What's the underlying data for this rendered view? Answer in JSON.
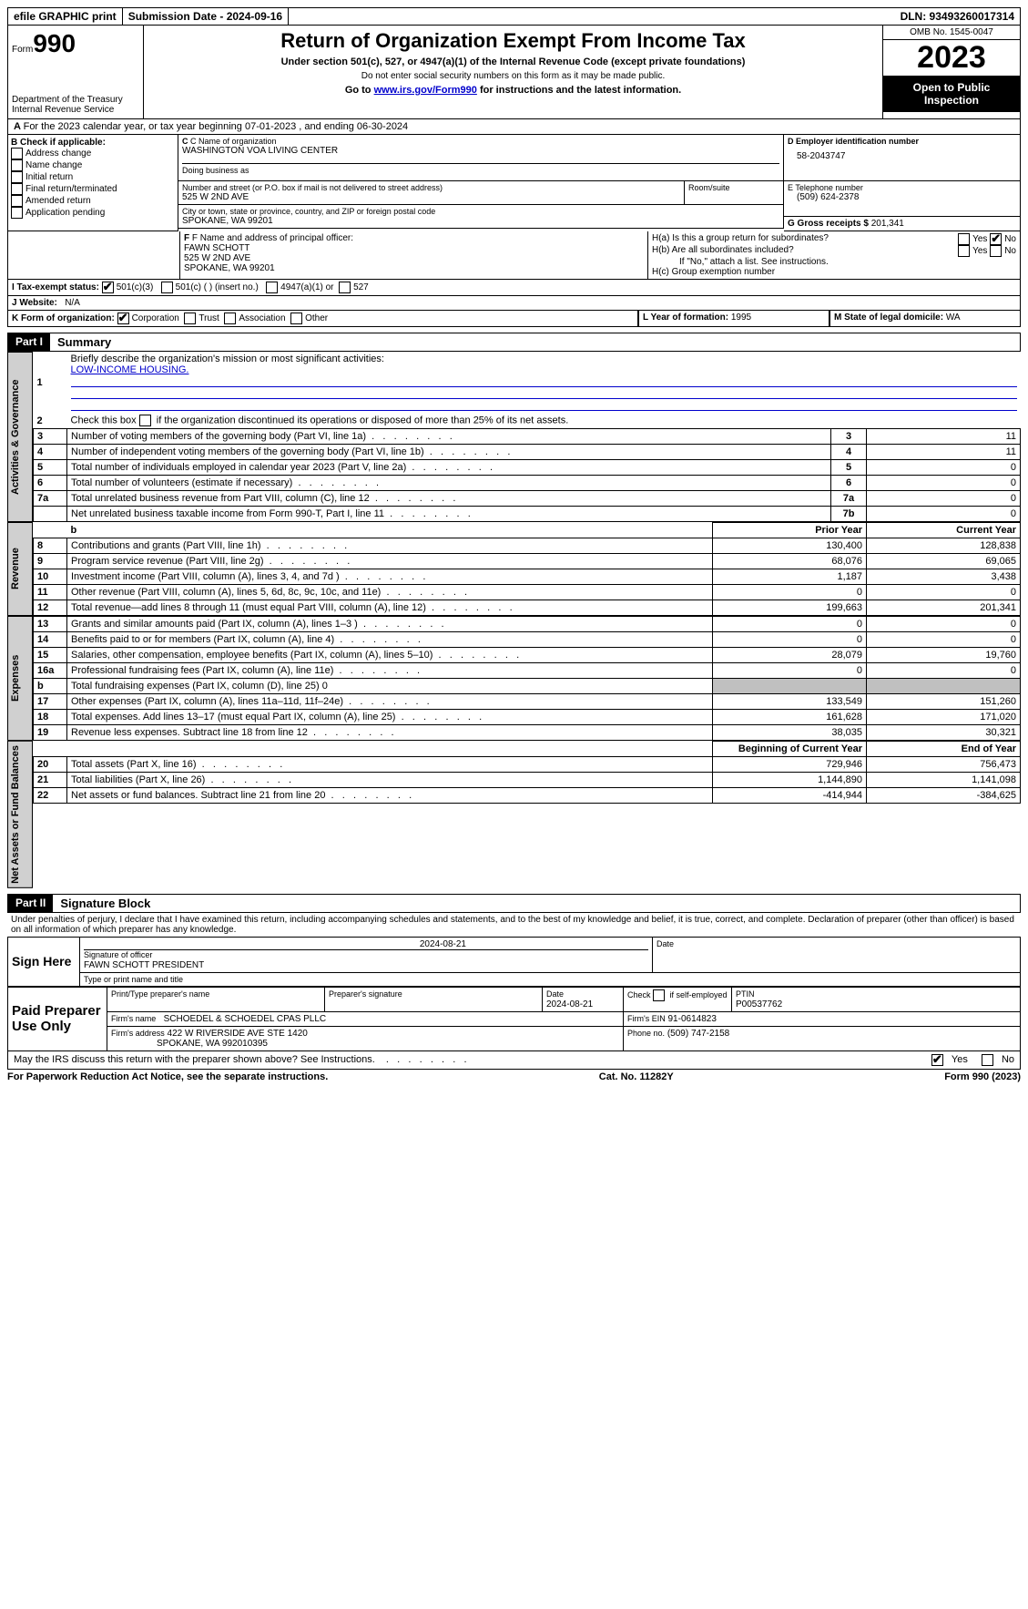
{
  "topbar": {
    "efile": "efile GRAPHIC print",
    "submission_label": "Submission Date - 2024-09-16",
    "dln_label": "DLN: 93493260017314"
  },
  "header": {
    "form_label": "Form",
    "form_no": "990",
    "dept": "Department of the Treasury Internal Revenue Service",
    "title": "Return of Organization Exempt From Income Tax",
    "subtitle": "Under section 501(c), 527, or 4947(a)(1) of the Internal Revenue Code (except private foundations)",
    "note1": "Do not enter social security numbers on this form as it may be made public.",
    "note2_pre": "Go to ",
    "note2_link": "www.irs.gov/Form990",
    "note2_post": " for instructions and the latest information.",
    "omb": "OMB No. 1545-0047",
    "year": "2023",
    "open": "Open to Public Inspection"
  },
  "A": {
    "text": "For the 2023 calendar year, or tax year beginning 07-01-2023   , and ending 06-30-2024"
  },
  "B": {
    "label": "B Check if applicable:",
    "items": [
      "Address change",
      "Name change",
      "Initial return",
      "Final return/terminated",
      "Amended return",
      "Application pending"
    ]
  },
  "C": {
    "name_label": "C Name of organization",
    "name": "WASHINGTON VOA LIVING CENTER",
    "dba_label": "Doing business as",
    "street_label": "Number and street (or P.O. box if mail is not delivered to street address)",
    "street": "525 W 2ND AVE",
    "room_label": "Room/suite",
    "city_label": "City or town, state or province, country, and ZIP or foreign postal code",
    "city": "SPOKANE, WA  99201"
  },
  "D": {
    "label": "D Employer identification number",
    "value": "58-2043747"
  },
  "E": {
    "label": "E Telephone number",
    "value": "(509) 624-2378"
  },
  "G": {
    "label": "G Gross receipts $",
    "value": "201,341"
  },
  "F": {
    "label": "F  Name and address of principal officer:",
    "name": "FAWN SCHOTT",
    "addr1": "525 W 2ND AVE",
    "addr2": "SPOKANE, WA  99201"
  },
  "H": {
    "a": "H(a)  Is this a group return for subordinates?",
    "b": "H(b)  Are all subordinates included?",
    "b_note": "If \"No,\" attach a list. See instructions.",
    "c": "H(c)  Group exemption number",
    "yes": "Yes",
    "no": "No"
  },
  "I": {
    "label": "I  Tax-exempt status:",
    "o1": "501(c)(3)",
    "o2": "501(c) (  ) (insert no.)",
    "o3": "4947(a)(1) or",
    "o4": "527"
  },
  "J": {
    "label": "J  Website:",
    "value": "N/A"
  },
  "K": {
    "label": "K Form of organization:",
    "o1": "Corporation",
    "o2": "Trust",
    "o3": "Association",
    "o4": "Other"
  },
  "L": {
    "label": "L Year of formation:",
    "value": "1995"
  },
  "M": {
    "label": "M State of legal domicile:",
    "value": "WA"
  },
  "part1": {
    "header": "Part I",
    "title": "Summary",
    "l1_label": "Briefly describe the organization's mission or most significant activities:",
    "l1_val": "LOW-INCOME HOUSING.",
    "l2": "Check this box      if the organization discontinued its operations or disposed of more than 25% of its net assets.",
    "vlabel_gov": "Activities & Governance",
    "vlabel_rev": "Revenue",
    "vlabel_exp": "Expenses",
    "vlabel_net": "Net Assets or Fund Balances",
    "gov_rows": [
      {
        "n": "3",
        "d": "Number of voting members of the governing body (Part VI, line 1a)",
        "k": "3",
        "v": "11"
      },
      {
        "n": "4",
        "d": "Number of independent voting members of the governing body (Part VI, line 1b)",
        "k": "4",
        "v": "11"
      },
      {
        "n": "5",
        "d": "Total number of individuals employed in calendar year 2023 (Part V, line 2a)",
        "k": "5",
        "v": "0"
      },
      {
        "n": "6",
        "d": "Total number of volunteers (estimate if necessary)",
        "k": "6",
        "v": "0"
      },
      {
        "n": "7a",
        "d": "Total unrelated business revenue from Part VIII, column (C), line 12",
        "k": "7a",
        "v": "0"
      },
      {
        "n": "",
        "d": "Net unrelated business taxable income from Form 990-T, Part I, line 11",
        "k": "7b",
        "v": "0"
      }
    ],
    "col_prior": "Prior Year",
    "col_current": "Current Year",
    "rev_rows": [
      {
        "n": "8",
        "d": "Contributions and grants (Part VIII, line 1h)",
        "p": "130,400",
        "c": "128,838"
      },
      {
        "n": "9",
        "d": "Program service revenue (Part VIII, line 2g)",
        "p": "68,076",
        "c": "69,065"
      },
      {
        "n": "10",
        "d": "Investment income (Part VIII, column (A), lines 3, 4, and 7d )",
        "p": "1,187",
        "c": "3,438"
      },
      {
        "n": "11",
        "d": "Other revenue (Part VIII, column (A), lines 5, 6d, 8c, 9c, 10c, and 11e)",
        "p": "0",
        "c": "0"
      },
      {
        "n": "12",
        "d": "Total revenue—add lines 8 through 11 (must equal Part VIII, column (A), line 12)",
        "p": "199,663",
        "c": "201,341"
      }
    ],
    "exp_rows": [
      {
        "n": "13",
        "d": "Grants and similar amounts paid (Part IX, column (A), lines 1–3 )",
        "p": "0",
        "c": "0"
      },
      {
        "n": "14",
        "d": "Benefits paid to or for members (Part IX, column (A), line 4)",
        "p": "0",
        "c": "0"
      },
      {
        "n": "15",
        "d": "Salaries, other compensation, employee benefits (Part IX, column (A), lines 5–10)",
        "p": "28,079",
        "c": "19,760"
      },
      {
        "n": "16a",
        "d": "Professional fundraising fees (Part IX, column (A), line 11e)",
        "p": "0",
        "c": "0"
      }
    ],
    "exp_b": {
      "n": "b",
      "d": "Total fundraising expenses (Part IX, column (D), line 25) 0"
    },
    "exp_rows2": [
      {
        "n": "17",
        "d": "Other expenses (Part IX, column (A), lines 11a–11d, 11f–24e)",
        "p": "133,549",
        "c": "151,260"
      },
      {
        "n": "18",
        "d": "Total expenses. Add lines 13–17 (must equal Part IX, column (A), line 25)",
        "p": "161,628",
        "c": "171,020"
      },
      {
        "n": "19",
        "d": "Revenue less expenses. Subtract line 18 from line 12",
        "p": "38,035",
        "c": "30,321"
      }
    ],
    "col_begin": "Beginning of Current Year",
    "col_end": "End of Year",
    "net_rows": [
      {
        "n": "20",
        "d": "Total assets (Part X, line 16)",
        "p": "729,946",
        "c": "756,473"
      },
      {
        "n": "21",
        "d": "Total liabilities (Part X, line 26)",
        "p": "1,144,890",
        "c": "1,141,098"
      },
      {
        "n": "22",
        "d": "Net assets or fund balances. Subtract line 21 from line 20",
        "p": "-414,944",
        "c": "-384,625"
      }
    ]
  },
  "part2": {
    "header": "Part II",
    "title": "Signature Block",
    "decl": "Under penalties of perjury, I declare that I have examined this return, including accompanying schedules and statements, and to the best of my knowledge and belief, it is true, correct, and complete. Declaration of preparer (other than officer) is based on all information of which preparer has any knowledge.",
    "sign_here": "Sign Here",
    "sig_officer": "Signature of officer",
    "sig_date": "Date",
    "sig_date_val": "2024-08-21",
    "officer_name": "FAWN SCHOTT PRESIDENT",
    "type_name": "Type or print name and title",
    "paid": "Paid Preparer Use Only",
    "prep_name_label": "Print/Type preparer's name",
    "prep_sig_label": "Preparer's signature",
    "prep_date_label": "Date",
    "prep_date": "2024-08-21",
    "self_emp": "Check        if self-employed",
    "ptin_label": "PTIN",
    "ptin": "P00537762",
    "firm_name_label": "Firm's name",
    "firm_name": "SCHOEDEL & SCHOEDEL CPAS PLLC",
    "firm_ein_label": "Firm's EIN",
    "firm_ein": "91-0614823",
    "firm_addr_label": "Firm's address",
    "firm_addr1": "422 W RIVERSIDE AVE STE 1420",
    "firm_addr2": "SPOKANE, WA  992010395",
    "phone_label": "Phone no.",
    "phone": "(509) 747-2158",
    "discuss": "May the IRS discuss this return with the preparer shown above? See Instructions.",
    "yes": "Yes",
    "no": "No"
  },
  "footer": {
    "left": "For Paperwork Reduction Act Notice, see the separate instructions.",
    "mid": "Cat. No. 11282Y",
    "right": "Form 990 (2023)"
  }
}
